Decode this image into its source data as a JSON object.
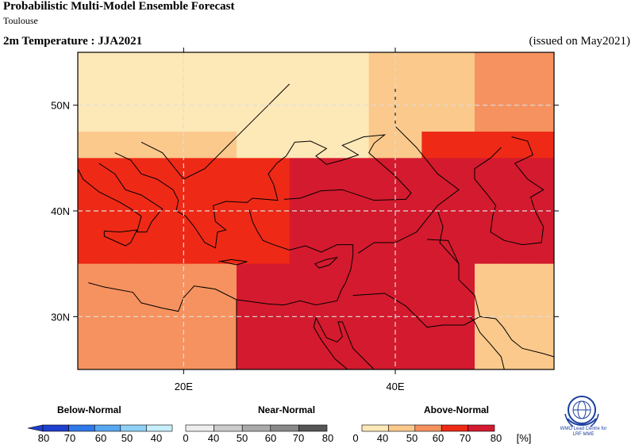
{
  "header": {
    "title": "Probabilistic Multi-Model Ensemble Forecast",
    "subtitle": "Toulouse",
    "variable": "2m Temperature : JJA2021",
    "issued": "(issued on May2021)"
  },
  "map": {
    "lon_range": [
      10,
      55
    ],
    "lat_range": [
      25,
      55
    ],
    "lat_ticks": [
      {
        "value": 30,
        "label": "30N"
      },
      {
        "value": 40,
        "label": "40N"
      },
      {
        "value": 50,
        "label": "50N"
      }
    ],
    "lon_ticks": [
      {
        "value": 20,
        "label": "20E"
      },
      {
        "value": 40,
        "label": "40E"
      }
    ],
    "grid": "dashed",
    "cell_size_deg": 2.5,
    "palette_above": {
      "40": "#fde8b7",
      "50": "#fbc98c",
      "60": "#f6925f",
      "70": "#ee2a16",
      "80": "#d41a2e"
    }
  },
  "legend": {
    "categories": [
      {
        "label": "Below-Normal"
      },
      {
        "label": "Near-Normal"
      },
      {
        "label": "Above-Normal"
      }
    ],
    "below_colors": [
      "#1f3fcf",
      "#2f78ea",
      "#57a7f1",
      "#8fd0f7",
      "#c7eefb"
    ],
    "near_colors": [
      "#eeeeee",
      "#cccccc",
      "#aaaaaa",
      "#888888",
      "#555555"
    ],
    "above_colors": [
      "#fde8b7",
      "#fbc98c",
      "#f6925f",
      "#ee2a16",
      "#d41a2e"
    ],
    "tick_labels": [
      "80",
      "70",
      "60",
      "50",
      "40",
      "0",
      "40",
      "50",
      "60",
      "70",
      "80",
      "0",
      "40",
      "50",
      "60",
      "70",
      "80"
    ],
    "unit": "[%]"
  },
  "logo": {
    "text_line1": "WMO Lead Centre for",
    "text_line2": "LRF MME",
    "color": "#1a3f9e"
  }
}
